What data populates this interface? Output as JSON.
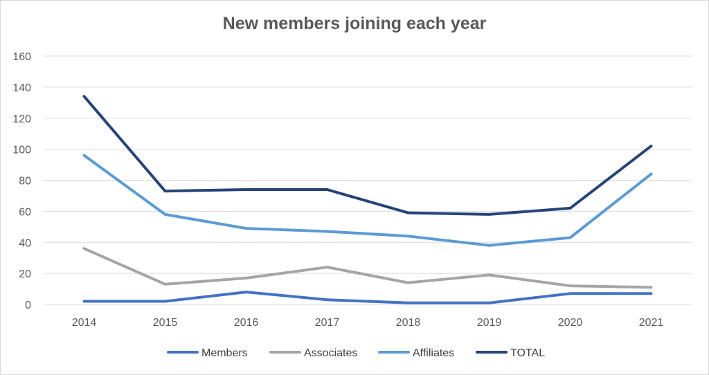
{
  "chart_data": {
    "type": "line",
    "title": "New members joining each year",
    "xlabel": "",
    "ylabel": "",
    "categories": [
      "2014",
      "2015",
      "2016",
      "2017",
      "2018",
      "2019",
      "2020",
      "2021"
    ],
    "ylim": [
      0,
      160
    ],
    "yticks": [
      0,
      20,
      40,
      60,
      80,
      100,
      120,
      140,
      160
    ],
    "grid": true,
    "legend_position": "bottom",
    "series": [
      {
        "name": "Members",
        "color": "#4472c4",
        "values": [
          2,
          2,
          8,
          3,
          1,
          1,
          7,
          7
        ]
      },
      {
        "name": "Associates",
        "color": "#a5a5a5",
        "values": [
          36,
          13,
          17,
          24,
          14,
          19,
          12,
          11
        ]
      },
      {
        "name": "Affiliates",
        "color": "#5b9bd5",
        "values": [
          96,
          58,
          49,
          47,
          44,
          38,
          43,
          84
        ]
      },
      {
        "name": "TOTAL",
        "color": "#264478",
        "values": [
          134,
          73,
          74,
          74,
          59,
          58,
          62,
          102
        ]
      }
    ]
  }
}
